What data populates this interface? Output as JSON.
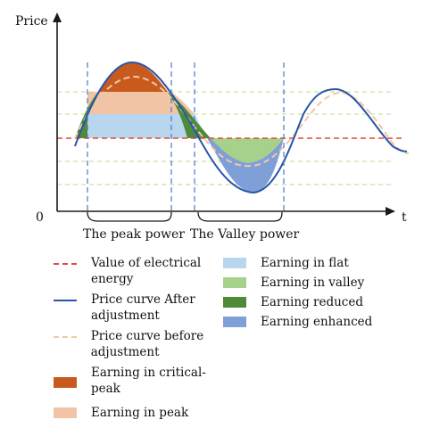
{
  "axis": {
    "y_label": "Price",
    "x_label": "t",
    "origin_label": "0"
  },
  "regions": {
    "peak": "The peak power",
    "valley": "The Valley power"
  },
  "legend": [
    {
      "label": "Value of electrical energy",
      "swatch": "dashed-line",
      "color": "#e04a3a"
    },
    {
      "label": "Price curve After adjustment",
      "swatch": "solid-line",
      "color": "#2a54a8"
    },
    {
      "label": "Price curve before adjustment",
      "swatch": "dashed-line",
      "color": "#efc9a4"
    },
    {
      "label": "Earning in critical-peak",
      "swatch": "box",
      "color": "#c85a1e"
    },
    {
      "label": "Earning in peak",
      "swatch": "box",
      "color": "#f2c4a6"
    },
    {
      "label": "Earning in flat",
      "swatch": "box",
      "color": "#b8d6ee"
    },
    {
      "label": "Earning in valley",
      "swatch": "box",
      "color": "#a6d18b"
    },
    {
      "label": "Earning reduced",
      "swatch": "box",
      "color": "#4e8a3a"
    },
    {
      "label": "Earning enhanced",
      "swatch": "box",
      "color": "#7f9fd8"
    }
  ],
  "colors": {
    "axis": "#1a1a1a",
    "guide_vertical": "#4a78cc",
    "guide_horizontal": "#cfe0a0"
  }
}
